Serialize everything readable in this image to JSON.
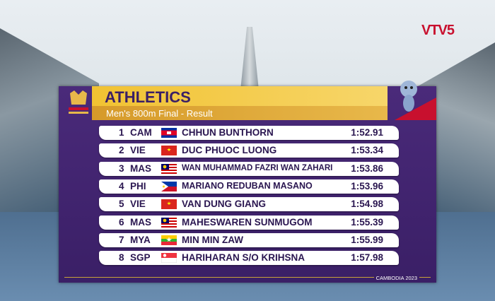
{
  "broadcaster": "VTV5",
  "header": {
    "title": "ATHLETICS",
    "subtitle": "Men's 800m Final - Result"
  },
  "table": {
    "rows": [
      {
        "rank": 1,
        "code": "CAM",
        "name": "CHHUN BUNTHORN",
        "time": "1:52.91"
      },
      {
        "rank": 2,
        "code": "VIE",
        "name": "DUC PHUOC LUONG",
        "time": "1:53.34"
      },
      {
        "rank": 3,
        "code": "MAS",
        "name": "WAN MUHAMMAD FAZRI WAN ZAHARI",
        "time": "1:53.86"
      },
      {
        "rank": 4,
        "code": "PHI",
        "name": "MARIANO REDUBAN MASANO",
        "time": "1:53.96"
      },
      {
        "rank": 5,
        "code": "VIE",
        "name": "VAN DUNG GIANG",
        "time": "1:54.98"
      },
      {
        "rank": 6,
        "code": "MAS",
        "name": "MAHESWAREN SUNMUGOM",
        "time": "1:55.39"
      },
      {
        "rank": 7,
        "code": "MYA",
        "name": "MIN MIN ZAW",
        "time": "1:55.99"
      },
      {
        "rank": 8,
        "code": "SGP",
        "name": "HARIHARAN S/O KRIHSNA",
        "time": "1:57.98"
      }
    ]
  },
  "footer": "CAMBODIA 2023"
}
